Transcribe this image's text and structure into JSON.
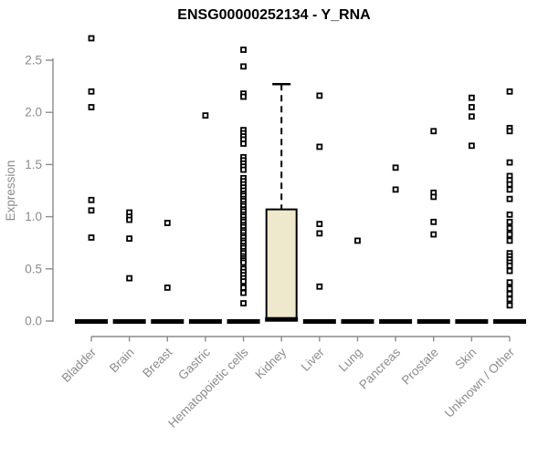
{
  "chart_data": {
    "type": "boxplot",
    "title": "ENSG00000252134 - Y_RNA",
    "ylabel": "Expression",
    "xlabel": "",
    "grid": false,
    "legend": "none",
    "ylim": [
      0,
      2.75
    ],
    "yticks": [
      "0.0",
      "0.5",
      "1.0",
      "1.5",
      "2.0",
      "2.5"
    ],
    "categories": [
      "Bladder",
      "Brain",
      "Breast",
      "Gastric",
      "Hematopoietic cells",
      "Kidney",
      "Liver",
      "Lung",
      "Pancreas",
      "Prostate",
      "Skin",
      "Unknown / Other"
    ],
    "colors": {
      "box_fill": "#EEE8CD",
      "box_stroke": "#000000",
      "point_stroke": "#000000",
      "point_fill": "#ffffff",
      "median_dash": "#000000",
      "axis_line": "#8c8c8c",
      "tick_text": "#8c8c8c",
      "title_text": "#000000"
    },
    "series": [
      {
        "category": "Bladder",
        "box": {
          "q1": 0,
          "median": 0,
          "q3": 0,
          "whisker_low": 0,
          "whisker_high": 0
        },
        "points": [
          2.71,
          2.2,
          2.05,
          1.16,
          1.06,
          0.8
        ]
      },
      {
        "category": "Brain",
        "box": {
          "q1": 0,
          "median": 0,
          "q3": 0,
          "whisker_low": 0,
          "whisker_high": 0
        },
        "points": [
          1.04,
          1.0,
          0.97,
          0.79,
          0.41
        ]
      },
      {
        "category": "Breast",
        "box": {
          "q1": 0,
          "median": 0,
          "q3": 0,
          "whisker_low": 0,
          "whisker_high": 0
        },
        "points": [
          0.94,
          0.32
        ]
      },
      {
        "category": "Gastric",
        "box": {
          "q1": 0,
          "median": 0,
          "q3": 0,
          "whisker_low": 0,
          "whisker_high": 0
        },
        "points": [
          1.97
        ]
      },
      {
        "category": "Hematopoietic cells",
        "box": {
          "q1": 0,
          "median": 0,
          "q3": 0,
          "whisker_low": 0,
          "whisker_high": 0
        },
        "points": [
          2.6,
          2.44,
          2.18,
          2.15,
          1.83,
          1.8,
          1.77,
          1.74,
          1.7,
          1.57,
          1.54,
          1.51,
          1.48,
          1.45,
          1.37,
          1.34,
          1.31,
          1.28,
          1.25,
          1.22,
          1.2,
          1.17,
          1.15,
          1.12,
          1.1,
          1.07,
          1.05,
          1.02,
          1.0,
          0.97,
          0.95,
          0.92,
          0.9,
          0.87,
          0.85,
          0.82,
          0.8,
          0.77,
          0.75,
          0.72,
          0.7,
          0.67,
          0.65,
          0.62,
          0.6,
          0.58,
          0.56,
          0.5,
          0.47,
          0.44,
          0.41,
          0.38,
          0.32,
          0.27,
          0.17
        ]
      },
      {
        "category": "Kidney",
        "box": {
          "q1": 0.02,
          "median": 0.02,
          "q3": 1.07,
          "whisker_low": 0.02,
          "whisker_high": 2.27
        },
        "points": []
      },
      {
        "category": "Liver",
        "box": {
          "q1": 0,
          "median": 0,
          "q3": 0,
          "whisker_low": 0,
          "whisker_high": 0
        },
        "points": [
          2.16,
          1.67,
          0.93,
          0.84,
          0.33
        ]
      },
      {
        "category": "Lung",
        "box": {
          "q1": 0,
          "median": 0,
          "q3": 0,
          "whisker_low": 0,
          "whisker_high": 0
        },
        "points": [
          0.77
        ]
      },
      {
        "category": "Pancreas",
        "box": {
          "q1": 0,
          "median": 0,
          "q3": 0,
          "whisker_low": 0,
          "whisker_high": 0
        },
        "points": [
          1.47,
          1.26
        ]
      },
      {
        "category": "Prostate",
        "box": {
          "q1": 0,
          "median": 0,
          "q3": 0,
          "whisker_low": 0,
          "whisker_high": 0
        },
        "points": [
          1.82,
          1.23,
          1.19,
          0.95,
          0.83
        ]
      },
      {
        "category": "Skin",
        "box": {
          "q1": 0,
          "median": 0,
          "q3": 0,
          "whisker_low": 0,
          "whisker_high": 0
        },
        "points": [
          2.14,
          2.05,
          1.96,
          1.68
        ]
      },
      {
        "category": "Unknown / Other",
        "box": {
          "q1": 0,
          "median": 0,
          "q3": 0,
          "whisker_low": 0,
          "whisker_high": 0
        },
        "points": [
          2.2,
          1.85,
          1.82,
          1.52,
          1.39,
          1.35,
          1.31,
          1.26,
          1.17,
          1.02,
          0.95,
          0.89,
          0.83,
          0.77,
          0.65,
          0.62,
          0.59,
          0.56,
          0.53,
          0.48,
          0.37,
          0.31,
          0.26,
          0.21,
          0.15
        ]
      }
    ]
  }
}
